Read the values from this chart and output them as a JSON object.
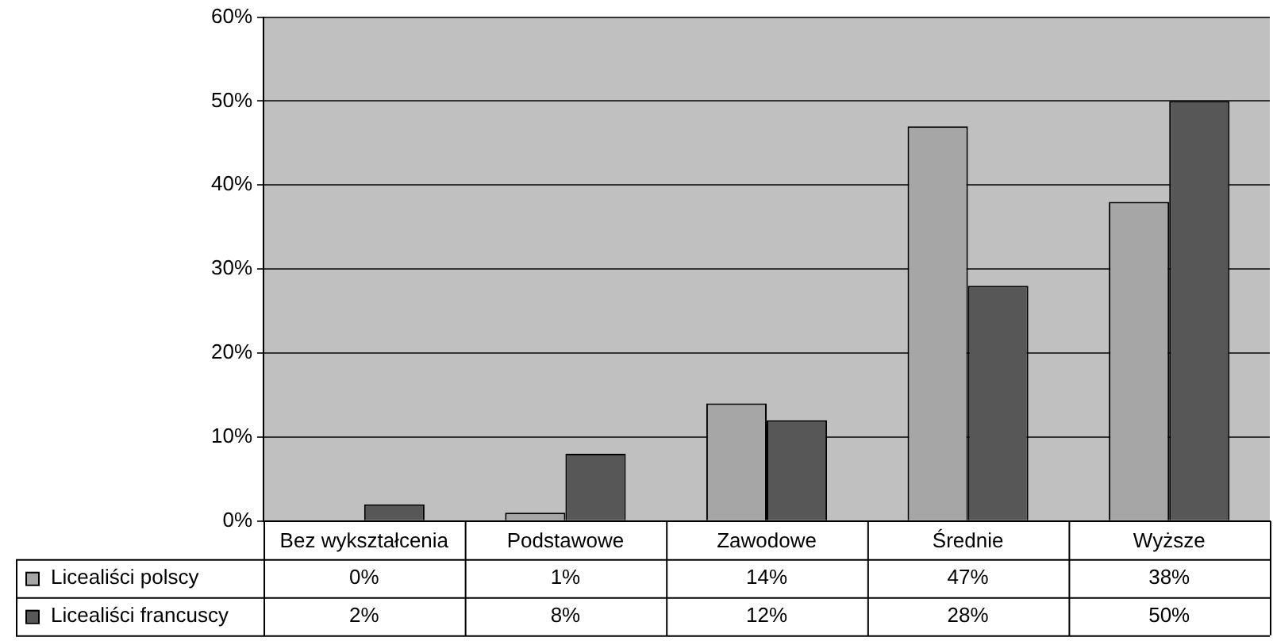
{
  "chart_data": {
    "type": "bar",
    "categories": [
      "Bez wykształcenia",
      "Podstawowe",
      "Zawodowe",
      "Średnie",
      "Wyższe"
    ],
    "series": [
      {
        "name": "Licealiści polscy",
        "color": "#a6a6a6",
        "values": [
          0,
          1,
          14,
          47,
          38
        ],
        "value_labels": [
          "0%",
          "1%",
          "14%",
          "47%",
          "38%"
        ]
      },
      {
        "name": "Licealiści francuscy",
        "color": "#575757",
        "values": [
          2,
          8,
          12,
          28,
          50
        ],
        "value_labels": [
          "2%",
          "8%",
          "12%",
          "28%",
          "50%"
        ]
      }
    ],
    "ylim": [
      0,
      60
    ],
    "yticks": [
      {
        "value": 0,
        "label": "0%"
      },
      {
        "value": 10,
        "label": "10%"
      },
      {
        "value": 20,
        "label": "20%"
      },
      {
        "value": 30,
        "label": "30%"
      },
      {
        "value": 40,
        "label": "40%"
      },
      {
        "value": 50,
        "label": "50%"
      },
      {
        "value": 60,
        "label": "60%"
      }
    ],
    "grid": "y",
    "legend": "bottom left"
  }
}
